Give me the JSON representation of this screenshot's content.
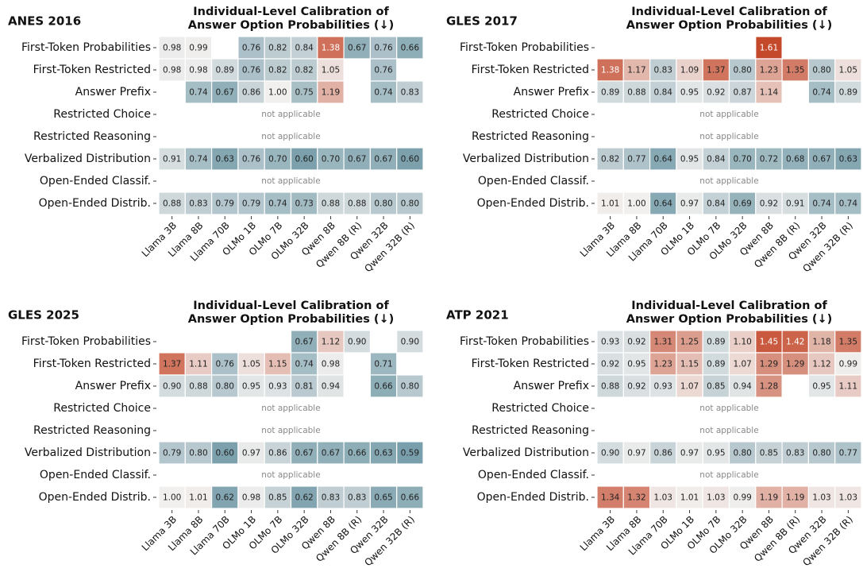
{
  "chart_data": [
    {
      "type": "heatmap",
      "panel_title": "ANES 2016",
      "title": [
        "Individual-Level Calibration of",
        "Answer Option Probabilities (↓)"
      ],
      "rows": [
        "First-Token Probabilities",
        "First-Token Restricted",
        "Answer Prefix",
        "Restricted Choice",
        "Restricted Reasoning",
        "Verbalized Distribution",
        "Open-Ended Classif.",
        "Open-Ended Distrib."
      ],
      "columns": [
        "Llama 3B",
        "Llama 8B",
        "Llama 70B",
        "OLMo 1B",
        "OLMo 7B",
        "OLMo 32B",
        "Qwen 8B",
        "Qwen 8B (R)",
        "Qwen 32B",
        "Qwen 32B (R)"
      ],
      "row_annotations": [
        null,
        null,
        null,
        "not applicable",
        "not applicable",
        null,
        "not applicable",
        null
      ],
      "values": [
        [
          0.98,
          0.99,
          null,
          0.76,
          0.82,
          0.84,
          1.38,
          0.67,
          0.76,
          0.66
        ],
        [
          0.98,
          0.98,
          0.89,
          0.76,
          0.82,
          0.82,
          1.05,
          null,
          0.76,
          null
        ],
        [
          null,
          0.74,
          0.67,
          0.86,
          1.0,
          0.75,
          1.19,
          null,
          0.74,
          0.83
        ],
        [
          null,
          null,
          null,
          null,
          null,
          null,
          null,
          null,
          null,
          null
        ],
        [
          null,
          null,
          null,
          null,
          null,
          null,
          null,
          null,
          null,
          null
        ],
        [
          0.91,
          0.74,
          0.63,
          0.76,
          0.7,
          0.6,
          0.7,
          0.67,
          0.67,
          0.6
        ],
        [
          null,
          null,
          null,
          null,
          null,
          null,
          null,
          null,
          null,
          null
        ],
        [
          0.88,
          0.83,
          0.79,
          0.79,
          0.74,
          0.73,
          0.88,
          0.88,
          0.8,
          0.8
        ]
      ],
      "value_labels": [
        [
          "0.98",
          "0.99",
          null,
          "0.76",
          "0.82",
          "0.84",
          "1.38",
          "0.67",
          "0.76",
          "0.66"
        ],
        [
          "0.98",
          "0.98",
          "0.89",
          "0.76",
          "0.82",
          "0.82",
          "1.05",
          null,
          "0.76",
          null
        ],
        [
          null,
          "0.74",
          "0.67",
          "0.86",
          "1.00",
          "0.75",
          "1.19",
          null,
          "0.74",
          "0.83"
        ],
        [
          null,
          null,
          null,
          null,
          null,
          null,
          null,
          null,
          null,
          null
        ],
        [
          null,
          null,
          null,
          null,
          null,
          null,
          null,
          null,
          null,
          null
        ],
        [
          "0.91",
          "0.74",
          "0.63",
          "0.76",
          "0.70",
          "0.60",
          "0.70",
          "0.67",
          "0.67",
          "0.60"
        ],
        [
          null,
          null,
          null,
          null,
          null,
          null,
          null,
          null,
          null,
          null
        ],
        [
          "0.88",
          "0.83",
          "0.79",
          "0.79",
          "0.74",
          "0.73",
          "0.88",
          "0.88",
          "0.80",
          "0.80"
        ]
      ],
      "clim": [
        0.5,
        1.5
      ],
      "center": 1,
      "colors": {
        "low": "#5e8d9d",
        "mid": "#f2f0ef",
        "high": "#c4492b"
      }
    },
    {
      "type": "heatmap",
      "panel_title": "GLES 2017",
      "title": [
        "Individual-Level Calibration of",
        "Answer Option Probabilities (↓)"
      ],
      "rows": [
        "First-Token Probabilities",
        "First-Token Restricted",
        "Answer Prefix",
        "Restricted Choice",
        "Restricted Reasoning",
        "Verbalized Distribution",
        "Open-Ended Classif.",
        "Open-Ended Distrib."
      ],
      "columns": [
        "Llama 3B",
        "Llama 8B",
        "Llama 70B",
        "OLMo 1B",
        "OLMo 7B",
        "OLMo 32B",
        "Qwen 8B",
        "Qwen 8B (R)",
        "Qwen 32B",
        "Qwen 32B (R)"
      ],
      "row_annotations": [
        null,
        null,
        null,
        "not applicable",
        "not applicable",
        null,
        "not applicable",
        null
      ],
      "values": [
        [
          null,
          null,
          null,
          null,
          null,
          null,
          1.61,
          null,
          null,
          null
        ],
        [
          1.38,
          1.17,
          0.83,
          1.09,
          1.37,
          0.8,
          1.23,
          1.35,
          0.8,
          1.05
        ],
        [
          0.89,
          0.88,
          0.84,
          0.95,
          0.92,
          0.87,
          1.14,
          null,
          0.74,
          0.89
        ],
        [
          null,
          null,
          null,
          null,
          null,
          null,
          null,
          null,
          null,
          null
        ],
        [
          null,
          null,
          null,
          null,
          null,
          null,
          null,
          null,
          null,
          null
        ],
        [
          0.82,
          0.77,
          0.64,
          0.95,
          0.84,
          0.7,
          0.72,
          0.68,
          0.67,
          0.63
        ],
        [
          null,
          null,
          null,
          null,
          null,
          null,
          null,
          null,
          null,
          null
        ],
        [
          1.01,
          1.0,
          0.64,
          0.97,
          0.84,
          0.69,
          0.92,
          0.91,
          0.74,
          0.74
        ]
      ],
      "value_labels": [
        [
          null,
          null,
          null,
          null,
          null,
          null,
          "1.61",
          null,
          null,
          null
        ],
        [
          "1.38",
          "1.17",
          "0.83",
          "1.09",
          "1.37",
          "0.80",
          "1.23",
          "1.35",
          "0.80",
          "1.05"
        ],
        [
          "0.89",
          "0.88",
          "0.84",
          "0.95",
          "0.92",
          "0.87",
          "1.14",
          null,
          "0.74",
          "0.89"
        ],
        [
          null,
          null,
          null,
          null,
          null,
          null,
          null,
          null,
          null,
          null
        ],
        [
          null,
          null,
          null,
          null,
          null,
          null,
          null,
          null,
          null,
          null
        ],
        [
          "0.82",
          "0.77",
          "0.64",
          "0.95",
          "0.84",
          "0.70",
          "0.72",
          "0.68",
          "0.67",
          "0.63"
        ],
        [
          null,
          null,
          null,
          null,
          null,
          null,
          null,
          null,
          null,
          null
        ],
        [
          "1.01",
          "1.00",
          "0.64",
          "0.97",
          "0.84",
          "0.69",
          "0.92",
          "0.91",
          "0.74",
          "0.74"
        ]
      ],
      "clim": [
        0.5,
        1.5
      ],
      "center": 1,
      "colors": {
        "low": "#5e8d9d",
        "mid": "#f2f0ef",
        "high": "#c4492b"
      }
    },
    {
      "type": "heatmap",
      "panel_title": "GLES 2025",
      "title": [
        "Individual-Level Calibration of",
        "Answer Option Probabilities (↓)"
      ],
      "rows": [
        "First-Token Probabilities",
        "First-Token Restricted",
        "Answer Prefix",
        "Restricted Choice",
        "Restricted Reasoning",
        "Verbalized Distribution",
        "Open-Ended Classif.",
        "Open-Ended Distrib."
      ],
      "columns": [
        "Llama 3B",
        "Llama 8B",
        "Llama 70B",
        "OLMo 1B",
        "OLMo 7B",
        "OLMo 32B",
        "Qwen 8B",
        "Qwen 8B (R)",
        "Qwen 32B",
        "Qwen 32B (R)"
      ],
      "row_annotations": [
        null,
        null,
        null,
        "not applicable",
        "not applicable",
        null,
        "not applicable",
        null
      ],
      "values": [
        [
          null,
          null,
          null,
          null,
          null,
          0.67,
          1.12,
          0.9,
          null,
          0.9
        ],
        [
          1.37,
          1.11,
          0.76,
          1.05,
          1.15,
          0.74,
          0.98,
          null,
          0.71,
          null
        ],
        [
          0.9,
          0.88,
          0.8,
          0.95,
          0.93,
          0.81,
          0.94,
          null,
          0.66,
          0.8
        ],
        [
          null,
          null,
          null,
          null,
          null,
          null,
          null,
          null,
          null,
          null
        ],
        [
          null,
          null,
          null,
          null,
          null,
          null,
          null,
          null,
          null,
          null
        ],
        [
          0.79,
          0.8,
          0.6,
          0.97,
          0.86,
          0.67,
          0.67,
          0.66,
          0.63,
          0.59
        ],
        [
          null,
          null,
          null,
          null,
          null,
          null,
          null,
          null,
          null,
          null
        ],
        [
          1.0,
          1.01,
          0.62,
          0.98,
          0.85,
          0.62,
          0.83,
          0.83,
          0.65,
          0.66
        ]
      ],
      "value_labels": [
        [
          null,
          null,
          null,
          null,
          null,
          "0.67",
          "1.12",
          "0.90",
          null,
          "0.90"
        ],
        [
          "1.37",
          "1.11",
          "0.76",
          "1.05",
          "1.15",
          "0.74",
          "0.98",
          null,
          "0.71",
          null
        ],
        [
          "0.90",
          "0.88",
          "0.80",
          "0.95",
          "0.93",
          "0.81",
          "0.94",
          null,
          "0.66",
          "0.80"
        ],
        [
          null,
          null,
          null,
          null,
          null,
          null,
          null,
          null,
          null,
          null
        ],
        [
          null,
          null,
          null,
          null,
          null,
          null,
          null,
          null,
          null,
          null
        ],
        [
          "0.79",
          "0.80",
          "0.60",
          "0.97",
          "0.86",
          "0.67",
          "0.67",
          "0.66",
          "0.63",
          "0.59"
        ],
        [
          null,
          null,
          null,
          null,
          null,
          null,
          null,
          null,
          null,
          null
        ],
        [
          "1.00",
          "1.01",
          "0.62",
          "0.98",
          "0.85",
          "0.62",
          "0.83",
          "0.83",
          "0.65",
          "0.66"
        ]
      ],
      "clim": [
        0.5,
        1.5
      ],
      "center": 1,
      "colors": {
        "low": "#5e8d9d",
        "mid": "#f2f0ef",
        "high": "#c4492b"
      }
    },
    {
      "type": "heatmap",
      "panel_title": "ATP 2021",
      "title": [
        "Individual-Level Calibration of",
        "Answer Option Probabilities (↓)"
      ],
      "rows": [
        "First-Token Probabilities",
        "First-Token Restricted",
        "Answer Prefix",
        "Restricted Choice",
        "Restricted Reasoning",
        "Verbalized Distribution",
        "Open-Ended Classif.",
        "Open-Ended Distrib."
      ],
      "columns": [
        "Llama 3B",
        "Llama 8B",
        "Llama 70B",
        "OLMo 1B",
        "OLMo 7B",
        "OLMo 32B",
        "Qwen 8B",
        "Qwen 8B (R)",
        "Qwen 32B",
        "Qwen 32B (R)"
      ],
      "row_annotations": [
        null,
        null,
        null,
        "not applicable",
        "not applicable",
        null,
        "not applicable",
        null
      ],
      "values": [
        [
          0.93,
          0.92,
          1.31,
          1.25,
          0.89,
          1.1,
          1.45,
          1.42,
          1.18,
          1.35
        ],
        [
          0.92,
          0.95,
          1.23,
          1.15,
          0.89,
          1.07,
          1.29,
          1.29,
          1.12,
          0.99
        ],
        [
          0.88,
          0.92,
          0.93,
          1.07,
          0.85,
          0.94,
          1.28,
          null,
          0.95,
          1.11
        ],
        [
          null,
          null,
          null,
          null,
          null,
          null,
          null,
          null,
          null,
          null
        ],
        [
          null,
          null,
          null,
          null,
          null,
          null,
          null,
          null,
          null,
          null
        ],
        [
          0.9,
          0.97,
          0.86,
          0.97,
          0.95,
          0.8,
          0.85,
          0.83,
          0.8,
          0.77
        ],
        [
          null,
          null,
          null,
          null,
          null,
          null,
          null,
          null,
          null,
          null
        ],
        [
          1.34,
          1.32,
          1.03,
          1.01,
          1.03,
          0.99,
          1.19,
          1.19,
          1.03,
          1.03
        ]
      ],
      "value_labels": [
        [
          "0.93",
          "0.92",
          "1.31",
          "1.25",
          "0.89",
          "1.10",
          "1.45",
          "1.42",
          "1.18",
          "1.35"
        ],
        [
          "0.92",
          "0.95",
          "1.23",
          "1.15",
          "0.89",
          "1.07",
          "1.29",
          "1.29",
          "1.12",
          "0.99"
        ],
        [
          "0.88",
          "0.92",
          "0.93",
          "1.07",
          "0.85",
          "0.94",
          "1.28",
          null,
          "0.95",
          "1.11"
        ],
        [
          null,
          null,
          null,
          null,
          null,
          null,
          null,
          null,
          null,
          null
        ],
        [
          null,
          null,
          null,
          null,
          null,
          null,
          null,
          null,
          null,
          null
        ],
        [
          "0.90",
          "0.97",
          "0.86",
          "0.97",
          "0.95",
          "0.80",
          "0.85",
          "0.83",
          "0.80",
          "0.77"
        ],
        [
          null,
          null,
          null,
          null,
          null,
          null,
          null,
          null,
          null,
          null
        ],
        [
          "1.34",
          "1.32",
          "1.03",
          "1.01",
          "1.03",
          "0.99",
          "1.19",
          "1.19",
          "1.03",
          "1.03"
        ]
      ],
      "clim": [
        0.5,
        1.5
      ],
      "center": 1,
      "colors": {
        "low": "#5e8d9d",
        "mid": "#f2f0ef",
        "high": "#c4492b"
      }
    }
  ]
}
